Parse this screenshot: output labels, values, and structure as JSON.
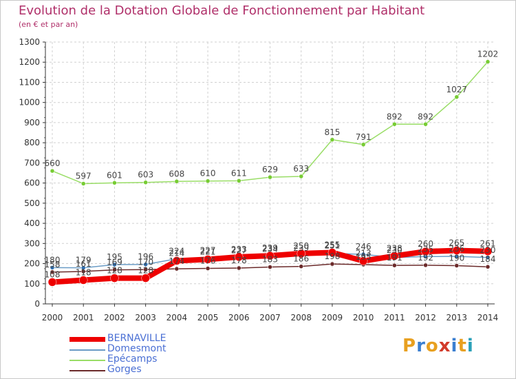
{
  "title": "Evolution de la Dotation Globale de Fonctionnement par Habitant",
  "subtitle": "(en € et par an)",
  "logo": {
    "text": "Proxiti",
    "colors": [
      "#e8a020",
      "#3b7fd0",
      "#e8a020",
      "#d23b2b",
      "#3b7fd0",
      "#e8a020",
      "#2aa0b8"
    ]
  },
  "chart_data": {
    "type": "line",
    "title": "Evolution de la Dotation Globale de Fonctionnement par Habitant",
    "subtitle": "(en € et par an)",
    "x": [
      "2000",
      "2001",
      "2002",
      "2003",
      "2004",
      "2005",
      "2006",
      "2007",
      "2008",
      "2009",
      "2010",
      "2011",
      "2012",
      "2013",
      "2014"
    ],
    "ylim": [
      0,
      1300
    ],
    "yticks": [
      0,
      100,
      200,
      300,
      400,
      500,
      600,
      700,
      800,
      900,
      1000,
      1100,
      1200,
      1300
    ],
    "grid": true,
    "legend_position": "bottom-left",
    "series": [
      {
        "name": "BERNAVILLE",
        "color": "#ee0000",
        "marker": "#ee0000",
        "emphasis": true,
        "values": [
          108,
          118,
          128,
          128,
          214,
          221,
          233,
          239,
          250,
          255,
          213,
          238,
          260,
          265,
          261
        ]
      },
      {
        "name": "Domesmont",
        "color": "#6a9cc6",
        "marker": "#2f6fb0",
        "values": [
          180,
          179,
          195,
          196,
          224,
          227,
          227,
          234,
          239,
          251,
          246,
          230,
          235,
          236,
          230
        ]
      },
      {
        "name": "Epécamps",
        "color": "#99dd66",
        "marker": "#77cc33",
        "values": [
          660,
          597,
          601,
          603,
          608,
          610,
          611,
          629,
          633,
          815,
          791,
          892,
          892,
          1027,
          1202
        ]
      },
      {
        "name": "Gorges",
        "color": "#6b2a2a",
        "marker": "#6b2a2a",
        "values": [
          158,
          161,
          169,
          170,
          174,
          176,
          178,
          183,
          186,
          198,
          195,
          191,
          192,
          190,
          184
        ]
      }
    ]
  }
}
